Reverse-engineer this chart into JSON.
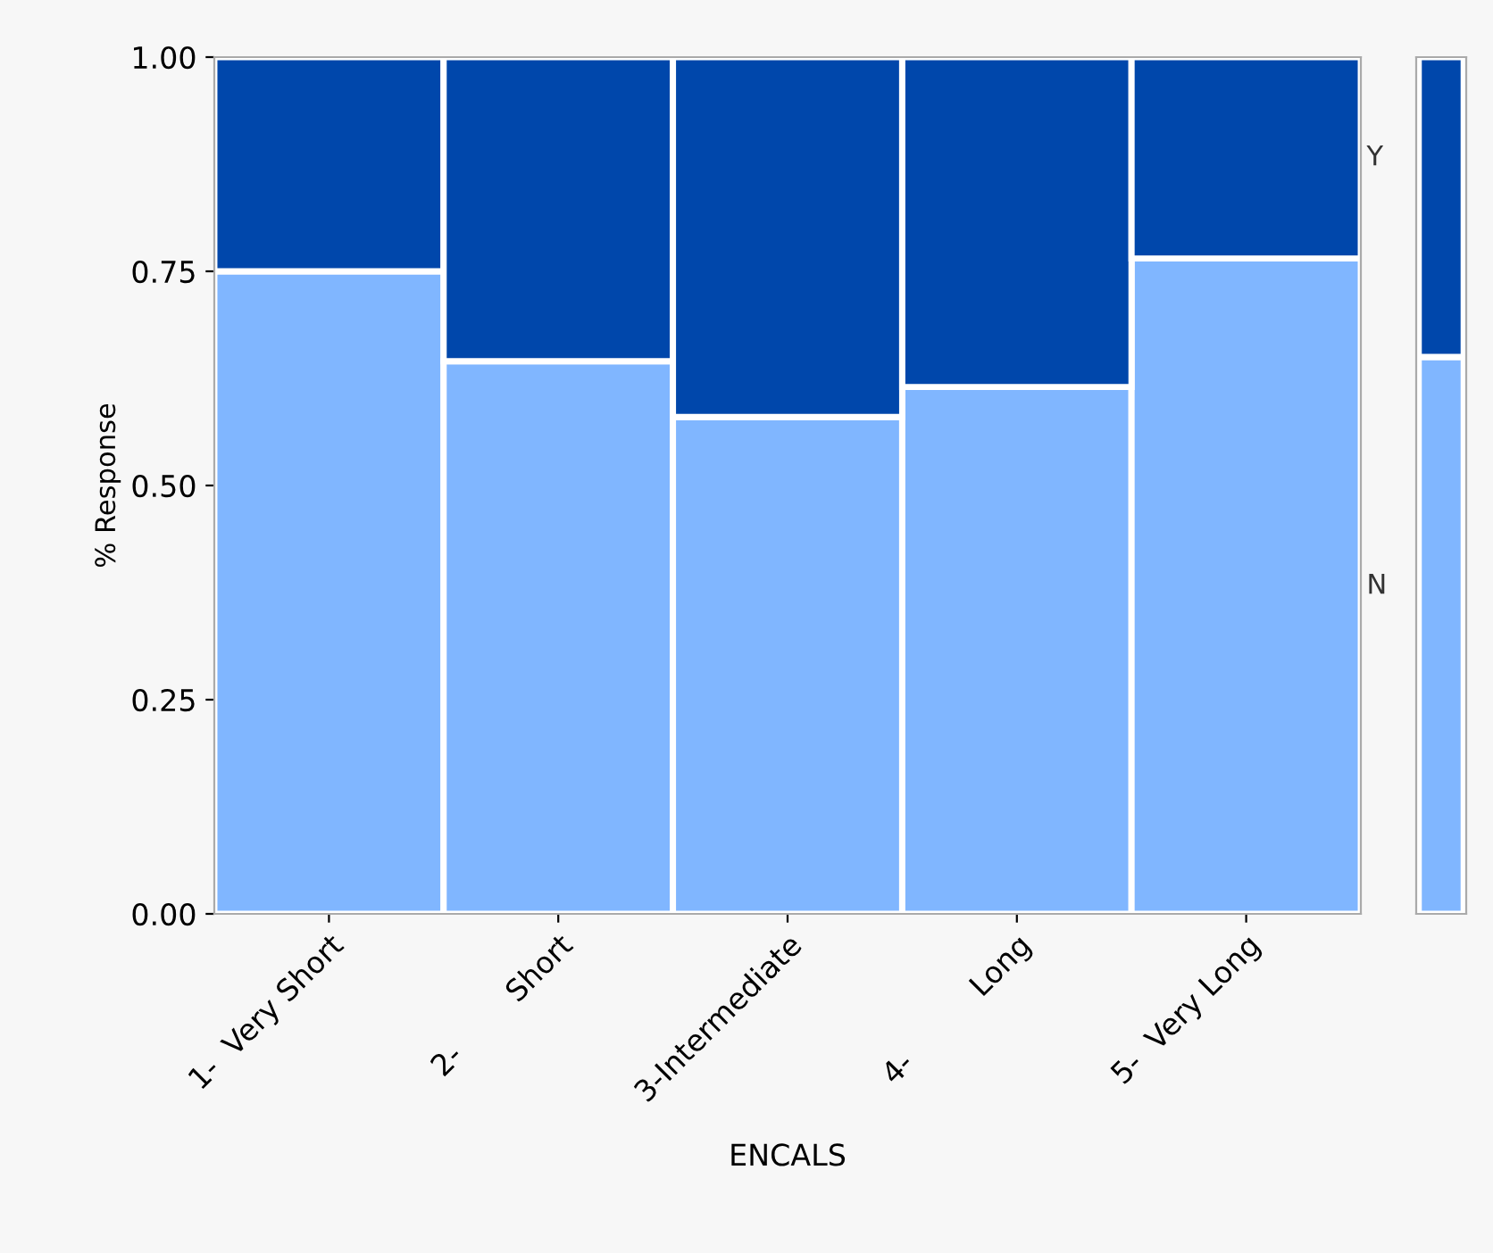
{
  "chart_data": [
    {
      "type": "bar",
      "stacked": true,
      "xlabel": "ENCALS",
      "ylabel": "% Response",
      "categories": [
        "1-  Very Short",
        "2-        Short",
        "3-Intermediate",
        "4-          Long",
        "5-  Very Long"
      ],
      "series": [
        {
          "name": "N",
          "color": "#80b6ff",
          "values": [
            0.75,
            0.645,
            0.58,
            0.615,
            0.765
          ]
        },
        {
          "name": "Y",
          "color": "#0047ab",
          "values": [
            0.25,
            0.355,
            0.42,
            0.385,
            0.235
          ]
        }
      ],
      "ylim": [
        0,
        1
      ],
      "yticks": [
        {
          "value": 0,
          "label": "0.00"
        },
        {
          "value": 0.25,
          "label": "0.25"
        },
        {
          "value": 0.5,
          "label": "0.50"
        },
        {
          "value": 0.75,
          "label": "0.75"
        },
        {
          "value": 1,
          "label": "1.00"
        }
      ],
      "grid": false,
      "legend": false
    },
    {
      "type": "bar",
      "stacked": true,
      "categories": [
        null
      ],
      "series": [
        {
          "color": "#80b6ff",
          "values": [
            0.65
          ]
        },
        {
          "color": "#0047ab",
          "values": [
            0.35
          ]
        }
      ],
      "ylim": [
        0,
        1
      ],
      "tick_labels": false,
      "grid": false,
      "legend": false
    }
  ]
}
